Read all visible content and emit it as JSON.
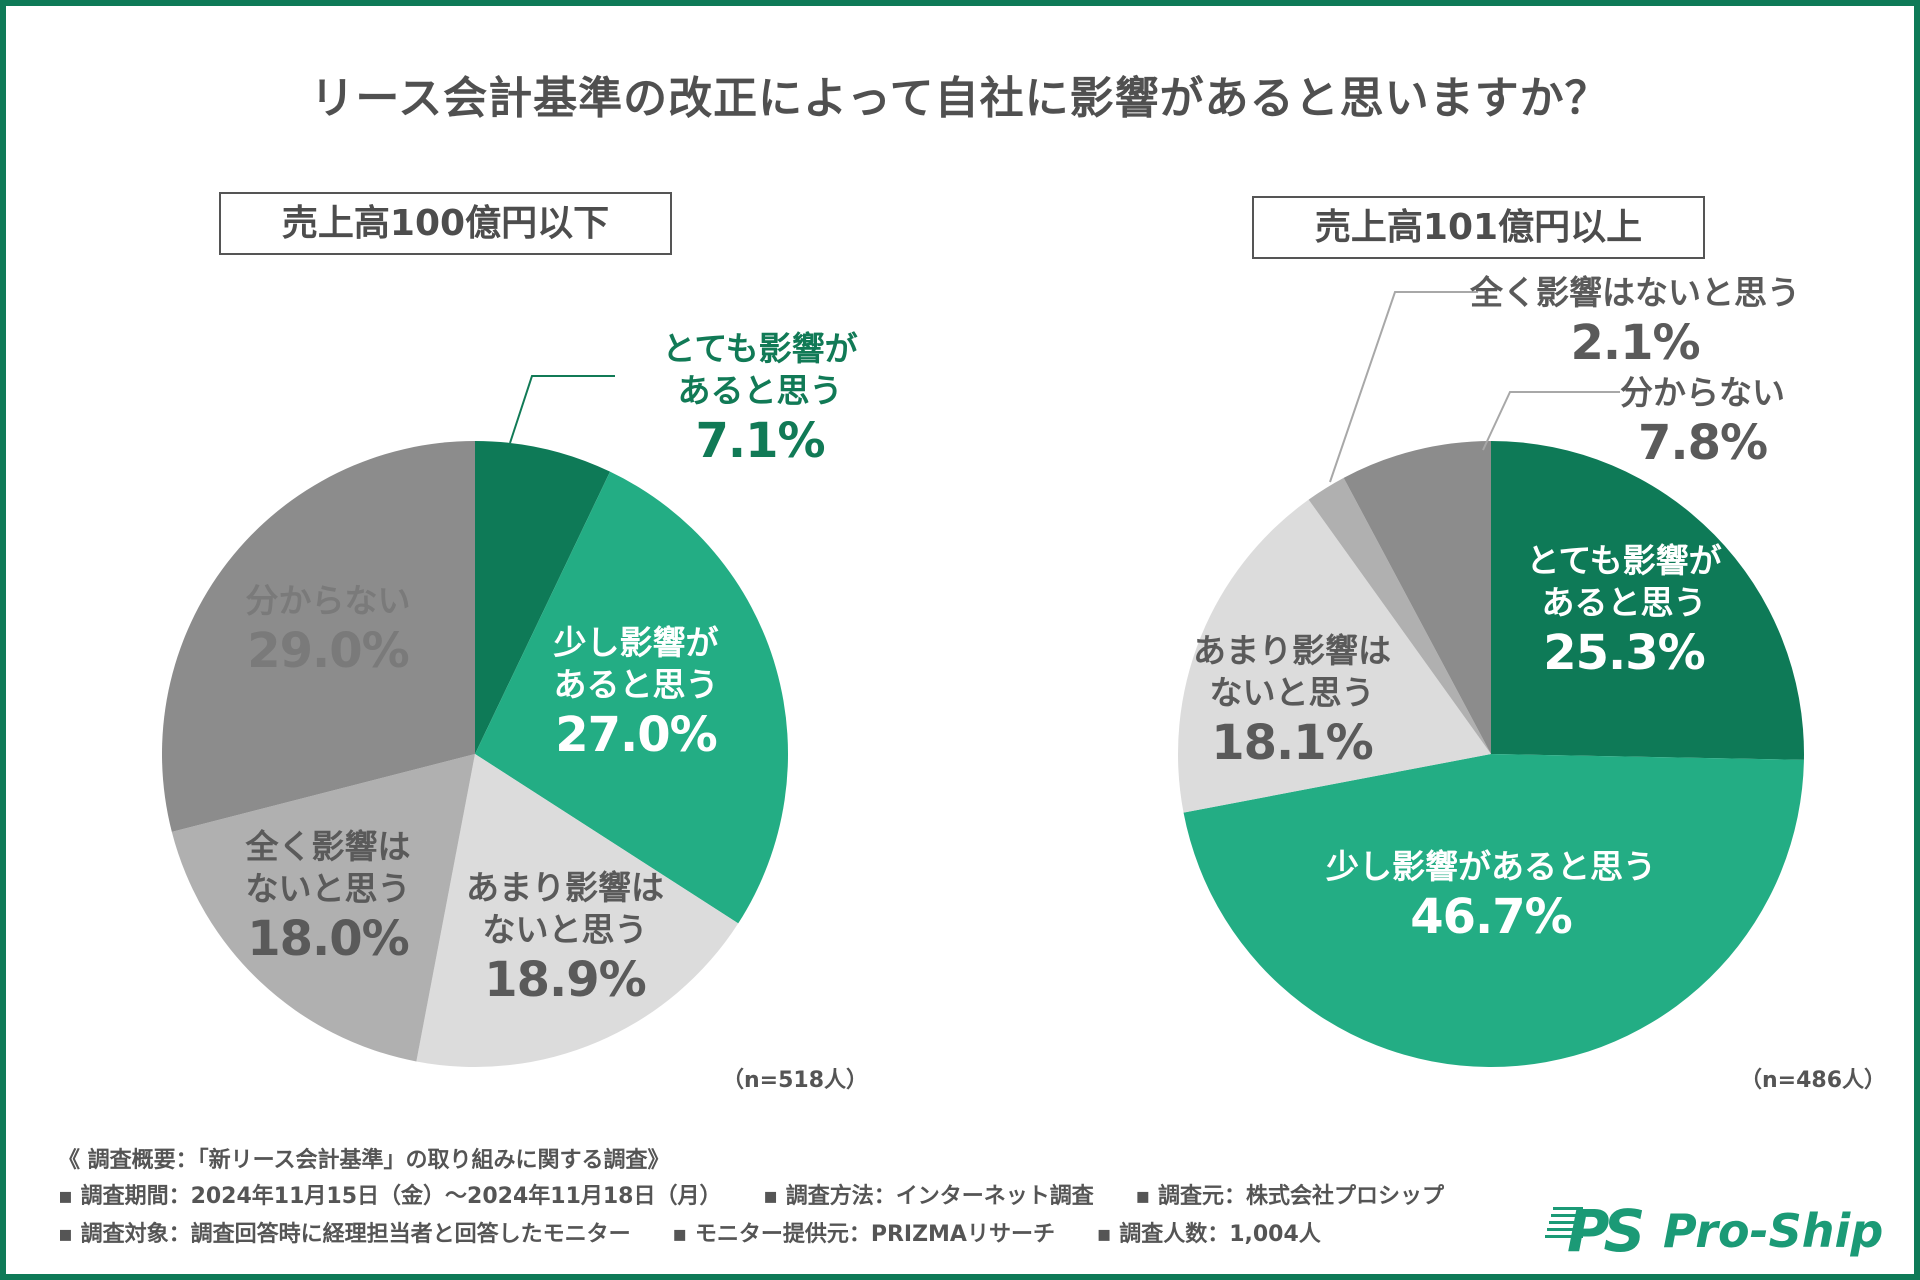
{
  "title": "リース会計基準の改正によって自社に影響があると思いますか？",
  "colors": {
    "frame": "#0e7a57",
    "very_affected": "#0e7a57",
    "slightly_affected": "#23ad84",
    "not_much": "#dcdcdc",
    "not_at_all": "#b0b0b0",
    "unknown": "#8c8c8c",
    "text_gray": "#5a5a5a",
    "text_green": "#117a56"
  },
  "chart_data": [
    {
      "type": "pie",
      "title": "売上高100億円以下",
      "n_label": "（n=518人）",
      "start": "12 o'clock, clockwise",
      "slices": [
        {
          "label": "とても影響があると思う",
          "value": 7.1,
          "display": "7.1%",
          "label_lines": [
            "とても影響が",
            "あると思う"
          ],
          "color_key": "very_affected"
        },
        {
          "label": "少し影響があると思う",
          "value": 27.0,
          "display": "27.0%",
          "label_lines": [
            "少し影響が",
            "あると思う"
          ],
          "color_key": "slightly_affected"
        },
        {
          "label": "あまり影響はないと思う",
          "value": 18.9,
          "display": "18.9%",
          "label_lines": [
            "あまり影響は",
            "ないと思う"
          ],
          "color_key": "not_much"
        },
        {
          "label": "全く影響はないと思う",
          "value": 18.0,
          "display": "18.0%",
          "label_lines": [
            "全く影響は",
            "ないと思う"
          ],
          "color_key": "not_at_all"
        },
        {
          "label": "分からない",
          "value": 29.0,
          "display": "29.0%",
          "label_lines": [
            "分からない"
          ],
          "color_key": "unknown"
        }
      ]
    },
    {
      "type": "pie",
      "title": "売上高101億円以上",
      "n_label": "（n=486人）",
      "start": "12 o'clock, clockwise",
      "slices": [
        {
          "label": "とても影響があると思う",
          "value": 25.3,
          "display": "25.3%",
          "label_lines": [
            "とても影響が",
            "あると思う"
          ],
          "color_key": "very_affected"
        },
        {
          "label": "少し影響があると思う",
          "value": 46.7,
          "display": "46.7%",
          "label_lines": [
            "少し影響があると思う"
          ],
          "color_key": "slightly_affected"
        },
        {
          "label": "あまり影響はないと思う",
          "value": 18.1,
          "display": "18.1%",
          "label_lines": [
            "あまり影響は",
            "ないと思う"
          ],
          "color_key": "not_much"
        },
        {
          "label": "全く影響はないと思う",
          "value": 2.1,
          "display": "2.1%",
          "label_lines": [
            "全く影響はないと思う"
          ],
          "color_key": "not_at_all"
        },
        {
          "label": "分からない",
          "value": 7.8,
          "display": "7.8%",
          "label_lines": [
            "分からない"
          ],
          "color_key": "unknown"
        }
      ]
    }
  ],
  "footer": {
    "overview": "《 調査概要：「新リース会計基準」の取り組みに関する調査》",
    "line1": [
      "▪ 調査期間：2024年11月15日（金）～2024年11月18日（月）",
      "▪ 調査方法：インターネット調査",
      "▪ 調査元：株式会社プロシップ"
    ],
    "line2": [
      "▪ 調査対象：調査回答時に経理担当者と回答したモニター",
      "▪ モニター提供元：PRIZMAリサーチ",
      "▪ 調査人数：1,004人"
    ]
  },
  "logo": {
    "mark": "PS",
    "text": "Pro-Ship"
  }
}
